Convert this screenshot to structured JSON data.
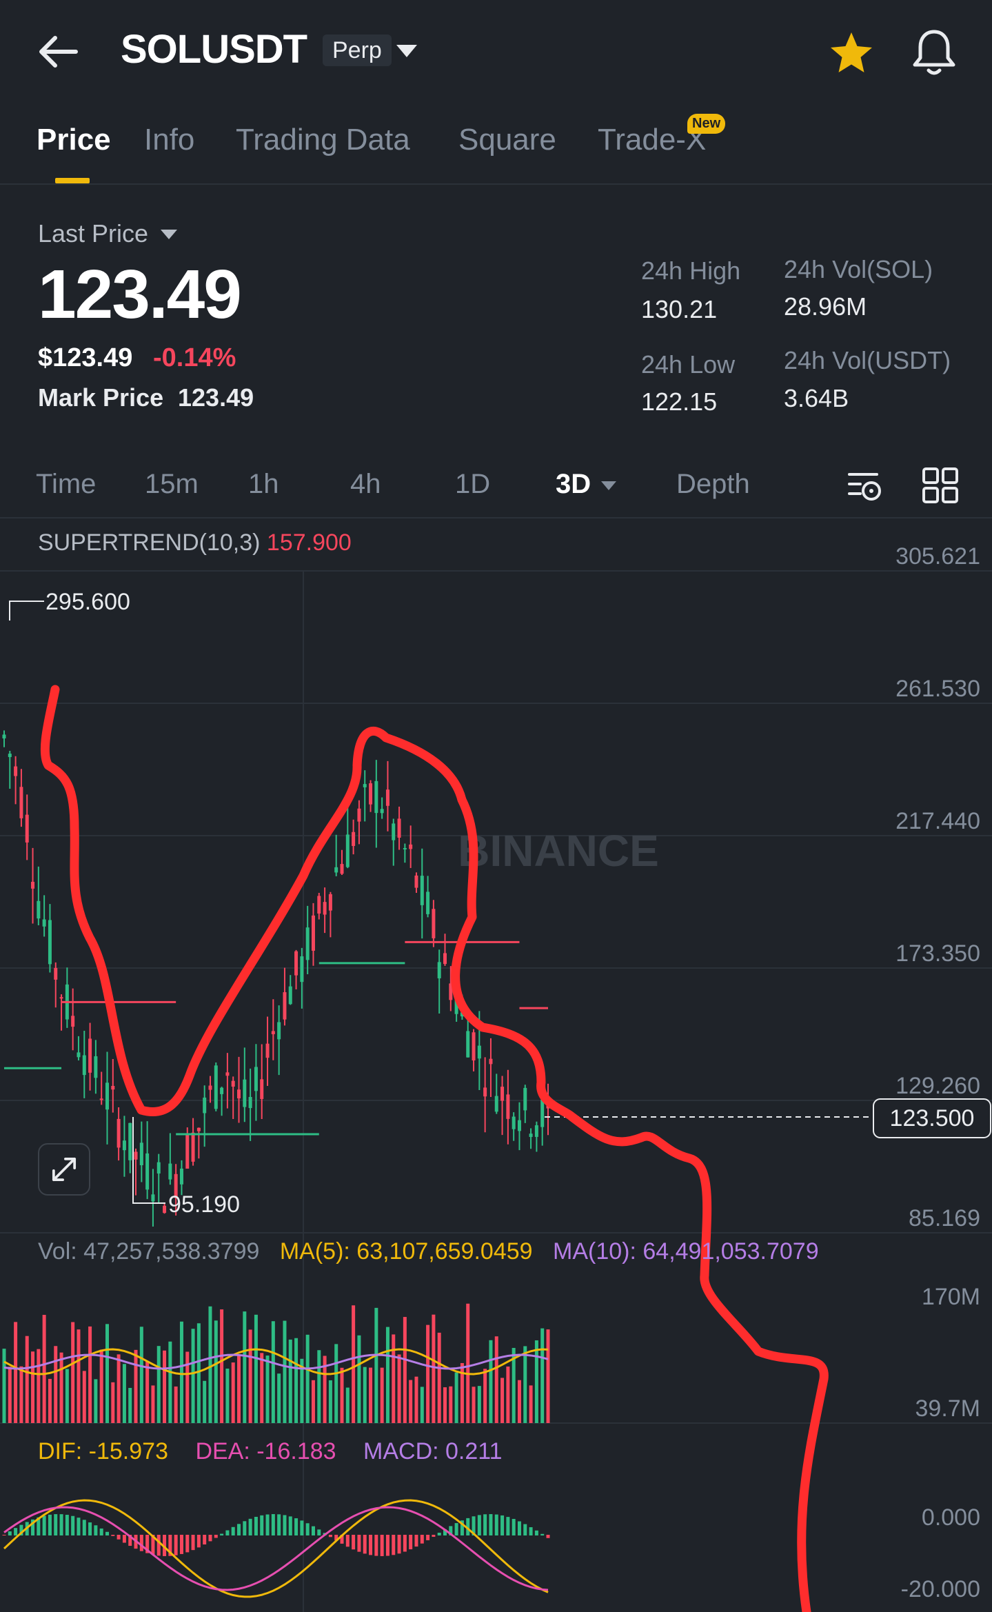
{
  "header": {
    "symbol": "SOLUSDT",
    "contract_type": "Perp",
    "icons": [
      "back-arrow-icon",
      "chevron-down-icon",
      "star-icon",
      "bell-icon"
    ]
  },
  "tabs": [
    {
      "label": "Price",
      "active": true
    },
    {
      "label": "Info"
    },
    {
      "label": "Trading Data"
    },
    {
      "label": "Square"
    },
    {
      "label": "Trade-X",
      "badge": "New"
    }
  ],
  "price": {
    "label": "Last Price",
    "last": "123.49",
    "usd": "$123.49",
    "change": "-0.14%",
    "mark_label": "Mark Price",
    "mark_value": "123.49"
  },
  "stats": {
    "high_label": "24h High",
    "high": "130.21",
    "low_label": "24h Low",
    "low": "122.15",
    "vol_sol_label": "24h Vol(SOL)",
    "vol_sol": "28.96M",
    "vol_usdt_label": "24h Vol(USDT)",
    "vol_usdt": "3.64B"
  },
  "intervals": [
    "Time",
    "15m",
    "1h",
    "4h",
    "1D",
    "3D",
    "Depth"
  ],
  "selected_interval": "3D",
  "watermark": "BINANCE",
  "colors": {
    "up": "#2ebd85",
    "down": "#f6465d",
    "accent": "#f0b90b",
    "ma5": "#f0b90b",
    "ma10": "#b57ee6",
    "dif": "#f0b90b",
    "dea": "#e64fb0",
    "annotation": "#ff2d2d"
  },
  "chart_data": [
    {
      "type": "candlestick",
      "indicator": "SUPERTREND(10,3)",
      "indicator_value": "157.900",
      "y_ticks": [
        "305.621",
        "261.530",
        "217.440",
        "173.350",
        "129.260",
        "85.169"
      ],
      "ylim": [
        85.169,
        305.621
      ],
      "high_marker": "295.600",
      "low_marker": "95.190",
      "current_price_tag": "123.500",
      "current_price": 123.5,
      "close_path": [
        250,
        240,
        225,
        200,
        185,
        170,
        160,
        150,
        142,
        135,
        128,
        120,
        112,
        108,
        104,
        100,
        104,
        112,
        118,
        128,
        135,
        140,
        130,
        126,
        135,
        150,
        160,
        168,
        175,
        185,
        195,
        205,
        212,
        220,
        228,
        232,
        225,
        215,
        210,
        198,
        190,
        175,
        168,
        155,
        150,
        140,
        135,
        130,
        128,
        125,
        124,
        123.5
      ]
    },
    {
      "type": "bar",
      "vol_label": "Vol: 47,257,538.3799",
      "ma5_label": "MA(5): 63,107,659.0459",
      "ma10_label": "MA(10): 64,491,053.7079",
      "y_ticks": [
        "170M",
        "39.7M"
      ]
    },
    {
      "type": "line",
      "dif_label": "DIF: -15.973",
      "dea_label": "DEA: -16.183",
      "macd_label": "MACD: 0.211",
      "y_ticks": [
        "0.000",
        "-20.000"
      ]
    }
  ]
}
